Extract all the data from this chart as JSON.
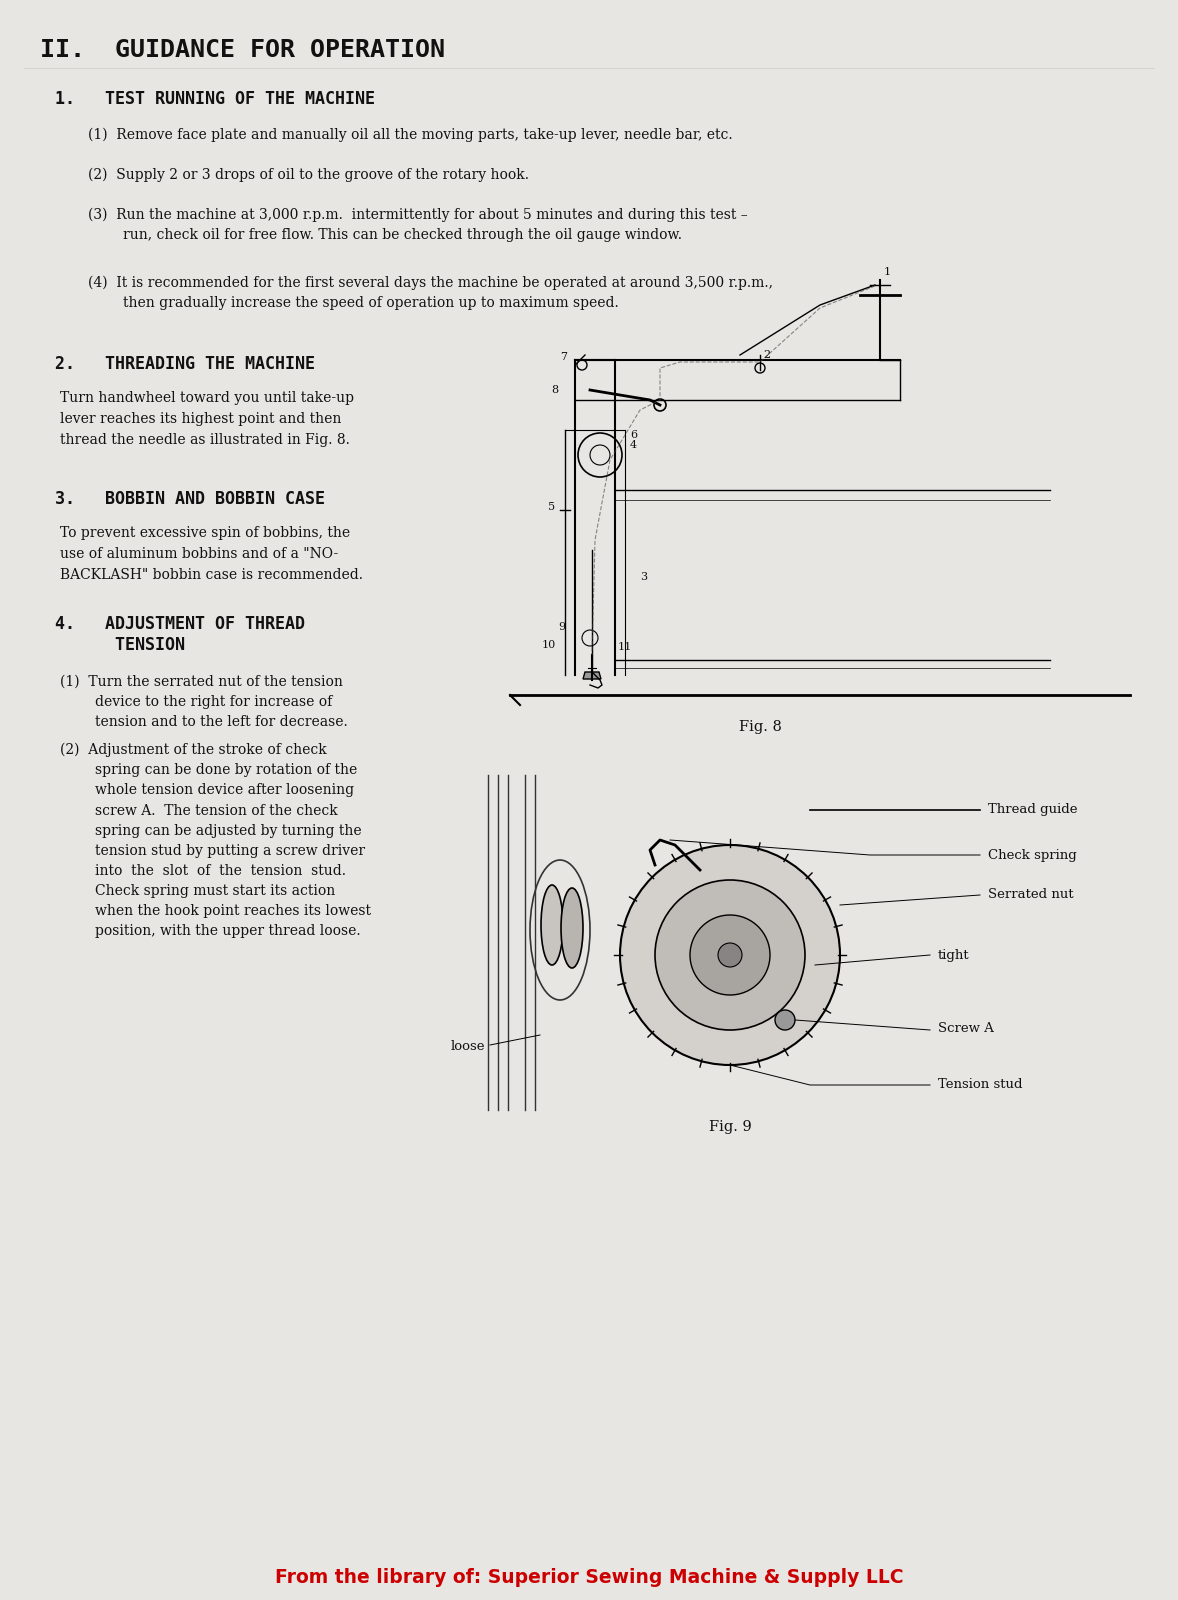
{
  "page_background": "#e8e6e3",
  "title": "II.  GUIDANCE FOR OPERATION",
  "footer": "From the library of: Superior Sewing Machine & Supply LLC",
  "footer_color": "#cc0000",
  "section1_title": "1.   TEST RUNNING OF THE MACHINE",
  "section1_items": [
    "(1)  Remove face plate and manually oil all the moving parts, take-up lever, needle bar, etc.",
    "(2)  Supply 2 or 3 drops of oil to the groove of the rotary hook.",
    "(3)  Run the machine at 3,000 r.p.m.  intermittently for about 5 minutes and during this test –\n        run, check oil for free flow. This can be checked through the oil gauge window.",
    "(4)  It is recommended for the first several days the machine be operated at around 3,500 r.p.m.,\n        then gradually increase the speed of operation up to maximum speed."
  ],
  "section2_title": "2.   THREADING THE MACHINE",
  "section2_text": "Turn handwheel toward you until take-up\nlever reaches its highest point and then\nthread the needle as illustrated in Fig. 8.",
  "section3_title": "3.   BOBBIN AND BOBBIN CASE",
  "section3_text": "To prevent excessive spin of bobbins, the\nuse of aluminum bobbins and of a \"NO-\nBACKLASH\" bobbin case is recommended.",
  "section4_title": "4.   ADJUSTMENT OF THREAD\n      TENSION",
  "section4_items": [
    "(1)  Turn the serrated nut of the tension\n        device to the right for increase of\n        tension and to the left for decrease.",
    "(2)  Adjustment of the stroke of check\n        spring can be done by rotation of the\n        whole tension device after loosening\n        screw A.  The tension of the check\n        spring can be adjusted by turning the\n        tension stud by putting a screw driver\n        into  the  slot  of  the  tension  stud.\n        Check spring must start its action\n        when the hook point reaches its lowest\n        position, with the upper thread loose."
  ],
  "fig8_caption": "Fig. 8",
  "fig9_caption": "Fig. 9"
}
